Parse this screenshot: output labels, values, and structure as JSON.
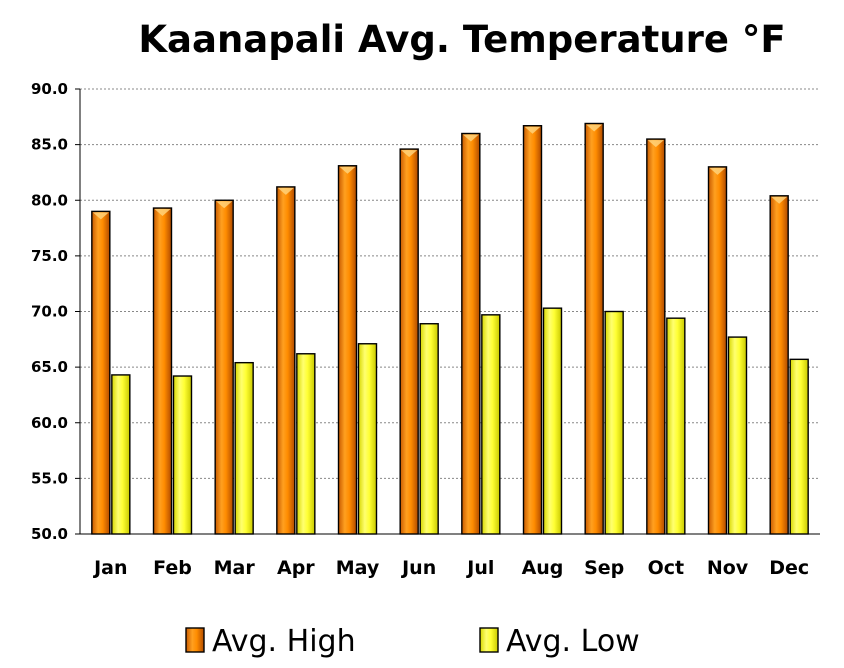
{
  "chart_data": {
    "type": "bar",
    "title": "Kaanapali Avg. Temperature °F",
    "xlabel": "",
    "ylabel": "",
    "ylim": [
      50,
      90
    ],
    "yticks": [
      "50.0",
      "55.0",
      "60.0",
      "65.0",
      "70.0",
      "75.0",
      "80.0",
      "85.0",
      "90.0"
    ],
    "grid": true,
    "legend_position": "bottom",
    "categories": [
      "Jan",
      "Feb",
      "Mar",
      "Apr",
      "May",
      "Jun",
      "Jul",
      "Aug",
      "Sep",
      "Oct",
      "Nov",
      "Dec"
    ],
    "series": [
      {
        "name": "Avg. High",
        "color": "#FF8C00",
        "values": [
          79.0,
          79.3,
          80.0,
          81.2,
          83.1,
          84.6,
          86.0,
          86.7,
          86.9,
          85.5,
          83.0,
          80.4
        ]
      },
      {
        "name": "Avg. Low",
        "color": "#FFFF33",
        "values": [
          64.3,
          64.2,
          65.4,
          66.2,
          67.1,
          68.9,
          69.7,
          70.3,
          70.0,
          69.4,
          67.7,
          65.7
        ]
      }
    ]
  }
}
